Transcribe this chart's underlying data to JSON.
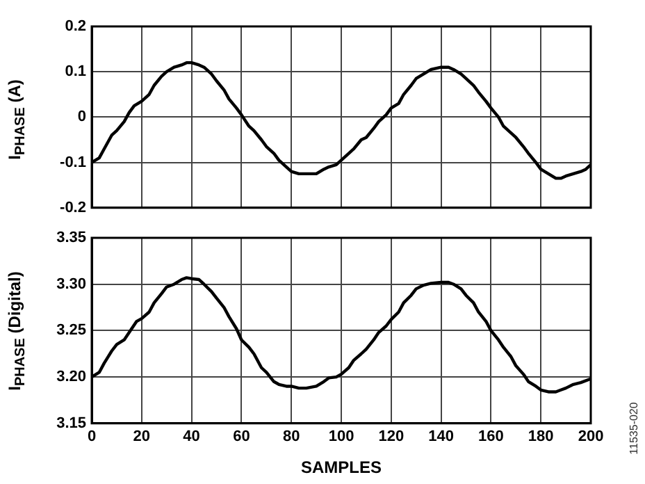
{
  "chart_data": [
    {
      "type": "line",
      "ylabel": "I$_{PHASE}$ (A)",
      "xlim": [
        0,
        200
      ],
      "xticks": [
        0,
        20,
        40,
        60,
        80,
        100,
        120,
        140,
        160,
        180,
        200
      ],
      "ylim": [
        -0.2,
        0.2
      ],
      "yticks": [
        0.2,
        0.1,
        0,
        -0.1,
        -0.2
      ],
      "grid": true,
      "tick_labels": "y",
      "line_style": "solid",
      "marker": "none",
      "series": [
        {
          "color": "#000000",
          "x": [
            0,
            3,
            5,
            8,
            10,
            13,
            15,
            17,
            20,
            23,
            25,
            28,
            30,
            33,
            36,
            38,
            40,
            43,
            45,
            48,
            50,
            53,
            55,
            58,
            60,
            63,
            65,
            68,
            70,
            73,
            75,
            78,
            80,
            83,
            86,
            90,
            93,
            95,
            98,
            100,
            103,
            105,
            108,
            110,
            113,
            115,
            118,
            120,
            123,
            125,
            128,
            130,
            133,
            136,
            140,
            143,
            145,
            148,
            150,
            153,
            155,
            158,
            160,
            163,
            165,
            168,
            170,
            173,
            175,
            178,
            180,
            183,
            186,
            188,
            190,
            193,
            196,
            198,
            200
          ],
          "values": [
            -0.1,
            -0.09,
            -0.07,
            -0.04,
            -0.03,
            -0.01,
            0.01,
            0.025,
            0.035,
            0.05,
            0.07,
            0.09,
            0.1,
            0.11,
            0.115,
            0.12,
            0.12,
            0.115,
            0.11,
            0.095,
            0.08,
            0.06,
            0.04,
            0.02,
            0.005,
            -0.02,
            -0.03,
            -0.05,
            -0.065,
            -0.08,
            -0.095,
            -0.11,
            -0.12,
            -0.125,
            -0.125,
            -0.125,
            -0.115,
            -0.11,
            -0.105,
            -0.095,
            -0.08,
            -0.07,
            -0.05,
            -0.045,
            -0.025,
            -0.01,
            0.005,
            0.02,
            0.03,
            0.05,
            0.07,
            0.085,
            0.095,
            0.105,
            0.11,
            0.11,
            0.105,
            0.095,
            0.085,
            0.07,
            0.055,
            0.035,
            0.02,
            0,
            -0.02,
            -0.035,
            -0.045,
            -0.065,
            -0.08,
            -0.1,
            -0.115,
            -0.125,
            -0.135,
            -0.135,
            -0.13,
            -0.125,
            -0.12,
            -0.115,
            -0.105
          ]
        }
      ]
    },
    {
      "type": "line",
      "ylabel": "I$_{PHASE}$ (Digital)",
      "xlabel": "SAMPLES",
      "xlim": [
        0,
        200
      ],
      "xticks": [
        0,
        20,
        40,
        60,
        80,
        100,
        120,
        140,
        160,
        180,
        200
      ],
      "ylim": [
        3.15,
        3.35
      ],
      "yticks": [
        {
          "value": 3.35,
          "label": "3.35"
        },
        {
          "value": 3.3,
          "label": "3.30"
        },
        {
          "value": 3.25,
          "label": "3.25"
        },
        {
          "value": 3.2,
          "label": "3.20"
        },
        {
          "value": 3.15,
          "label": "3.15"
        }
      ],
      "grid": true,
      "line_style": "solid",
      "marker": "none",
      "annotations": [
        "11535-020"
      ],
      "series": [
        {
          "color": "#000000",
          "x": [
            0,
            3,
            5,
            8,
            10,
            13,
            15,
            18,
            20,
            23,
            25,
            28,
            30,
            33,
            36,
            38,
            40,
            43,
            45,
            48,
            50,
            53,
            55,
            58,
            60,
            63,
            65,
            68,
            70,
            73,
            75,
            78,
            80,
            83,
            86,
            90,
            93,
            95,
            98,
            100,
            103,
            105,
            108,
            110,
            113,
            115,
            118,
            120,
            123,
            125,
            128,
            130,
            133,
            136,
            140,
            143,
            145,
            148,
            150,
            153,
            155,
            158,
            160,
            163,
            165,
            168,
            170,
            173,
            175,
            178,
            180,
            183,
            186,
            188,
            190,
            193,
            196,
            200
          ],
          "values": [
            3.2,
            3.205,
            3.215,
            3.228,
            3.235,
            3.24,
            3.248,
            3.26,
            3.263,
            3.27,
            3.28,
            3.29,
            3.297,
            3.3,
            3.305,
            3.307,
            3.306,
            3.305,
            3.3,
            3.292,
            3.285,
            3.275,
            3.265,
            3.252,
            3.24,
            3.232,
            3.225,
            3.21,
            3.205,
            3.195,
            3.192,
            3.19,
            3.19,
            3.188,
            3.188,
            3.19,
            3.195,
            3.199,
            3.2,
            3.203,
            3.21,
            3.218,
            3.225,
            3.23,
            3.24,
            3.248,
            3.255,
            3.262,
            3.27,
            3.28,
            3.288,
            3.295,
            3.299,
            3.301,
            3.302,
            3.302,
            3.3,
            3.295,
            3.288,
            3.28,
            3.27,
            3.26,
            3.25,
            3.24,
            3.232,
            3.222,
            3.212,
            3.203,
            3.195,
            3.19,
            3.186,
            3.184,
            3.184,
            3.186,
            3.188,
            3.192,
            3.194,
            3.198
          ]
        }
      ]
    }
  ]
}
